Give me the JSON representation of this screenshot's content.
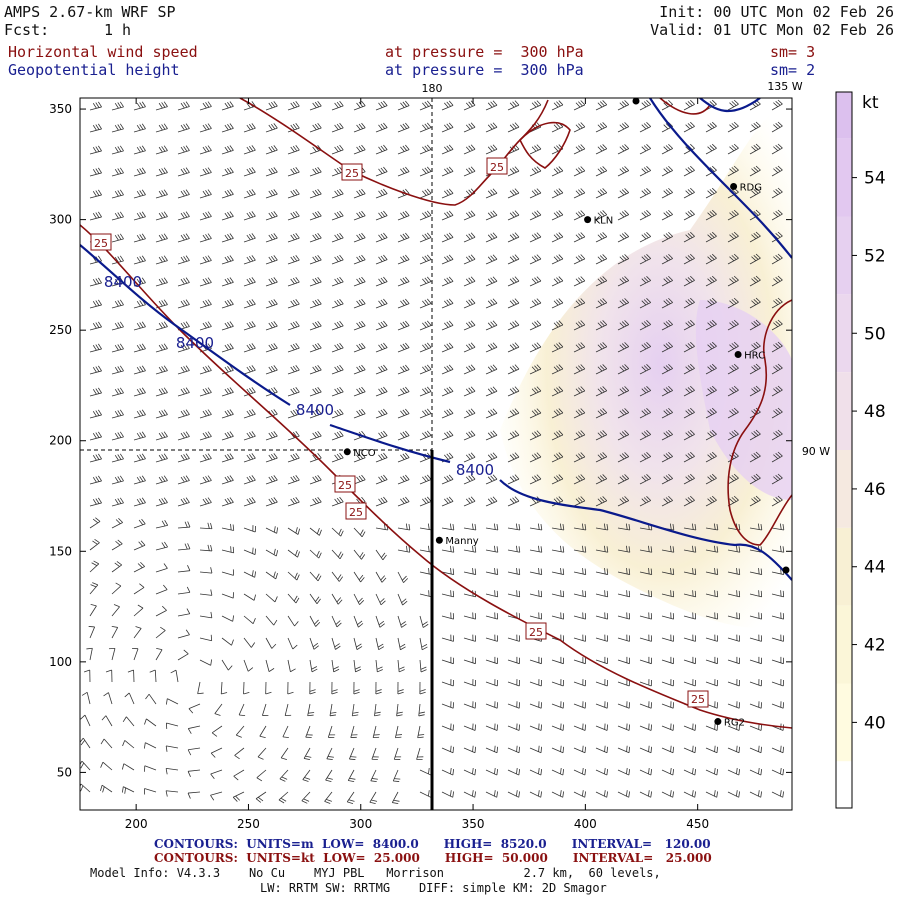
{
  "header": {
    "model": "AMPS 2.67-km WRF SP",
    "fcst_label": "Fcst:",
    "fcst_value": "1 h",
    "init": "Init: 00 UTC Mon 02 Feb 26",
    "valid": "Valid: 01 UTC Mon 02 Feb 26",
    "field1_name": "Horizontal wind speed",
    "field1_level": "at pressure =  300 hPa",
    "field1_sm": "sm= 3",
    "field2_name": "Geopotential height",
    "field2_level": "at pressure =  300 hPa",
    "field2_sm": "sm= 2"
  },
  "map": {
    "x_ticks": [
      "200",
      "250",
      "300",
      "350",
      "400",
      "450"
    ],
    "y_ticks": [
      "350",
      "300",
      "250",
      "200",
      "150",
      "100",
      "50"
    ],
    "meridian_top_label": "180",
    "meridian_top_right_label": "135 W",
    "meridian_right_label": "90 W",
    "stations": [
      {
        "code": "KLN",
        "x": 401,
        "y": 300
      },
      {
        "code": "RDG",
        "x": 466,
        "y": 315
      },
      {
        "code": "HRC",
        "x": 468,
        "y": 239
      },
      {
        "code": "NCO",
        "x": 294,
        "y": 195
      },
      {
        "code": "Manny",
        "x": 335,
        "y": 155
      },
      {
        "code": "RG2",
        "x": 459,
        "y": 73
      }
    ],
    "height_contour_labels": [
      "8400",
      "8400",
      "8400",
      "8400"
    ],
    "speed_contour_labels": [
      "25",
      "25",
      "25",
      "25",
      "25",
      "25"
    ],
    "colors": {
      "height_contour": "#0a1a8c",
      "speed_contour": "#8a1010",
      "barb": "#222222",
      "cross_section": "#000000"
    }
  },
  "colorbar": {
    "unit": "kt",
    "labels": [
      "54",
      "52",
      "50",
      "48",
      "46",
      "44",
      "42",
      "40"
    ],
    "colors": [
      "#e2c8f0",
      "#e6d0f0",
      "#ebd8ee",
      "#f0e0ea",
      "#f5e9e0",
      "#f8f0d4",
      "#fbf6d8",
      "#fffbe0"
    ]
  },
  "footer": {
    "contours1": "CONTOURS:  UNITS=m  LOW=  8400.0      HIGH=  8520.0      INTERVAL=   120.00",
    "contours2": "CONTOURS:  UNITS=kt  LOW=  25.000      HIGH=  50.000      INTERVAL=   25.000",
    "model_info": "Model Info: V4.3.3    No Cu    MYJ PBL   Morrison           2.7 km,  60 levels,",
    "physics": "LW: RRTM SW: RRTMG    DIFF: simple KM: 2D Smagor"
  }
}
